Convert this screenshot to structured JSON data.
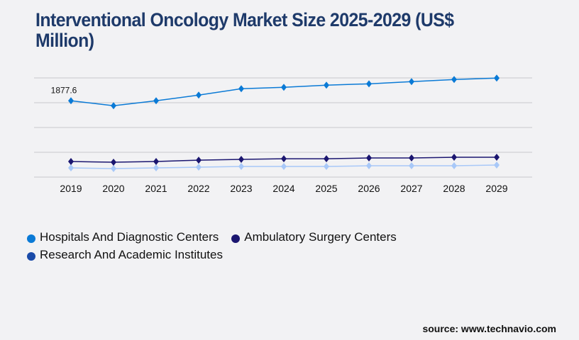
{
  "title": "Interventional Oncology Market Size 2025-2029 (US$ Million)",
  "source": "source: www.technavio.com",
  "chart_data": {
    "type": "line",
    "title": "Interventional Oncology Market Size 2025-2029 (US$ Million)",
    "xlabel": "",
    "ylabel": "",
    "categories": [
      "2019",
      "2020",
      "2021",
      "2022",
      "2023",
      "2024",
      "2025",
      "2026",
      "2027",
      "2028",
      "2029"
    ],
    "ylim": [
      0,
      2440
    ],
    "grid": true,
    "legend_position": "bottom",
    "series": [
      {
        "name": "Hospitals And Diagnostic Centers",
        "color": "#0a7ad6",
        "legend_color": "#0a7ad6",
        "values": [
          1877.6,
          1756,
          1878,
          2017,
          2174,
          2208,
          2261,
          2295,
          2348,
          2400,
          2435
        ]
      },
      {
        "name": "Ambulatory Surgery Centers",
        "color": "#1b1670",
        "legend_color": "#1b1670",
        "values": [
          383,
          365,
          383,
          417,
          435,
          452,
          452,
          470,
          470,
          487,
          487
        ]
      },
      {
        "name": "Research And Academic Institutes",
        "color": "#a8c8f8",
        "legend_color": "#1a4aa8",
        "values": [
          226,
          209,
          226,
          243,
          261,
          261,
          261,
          278,
          278,
          278,
          296
        ]
      }
    ],
    "annotations": [
      {
        "series": 0,
        "category": "2019",
        "text": "1877.6"
      }
    ]
  }
}
